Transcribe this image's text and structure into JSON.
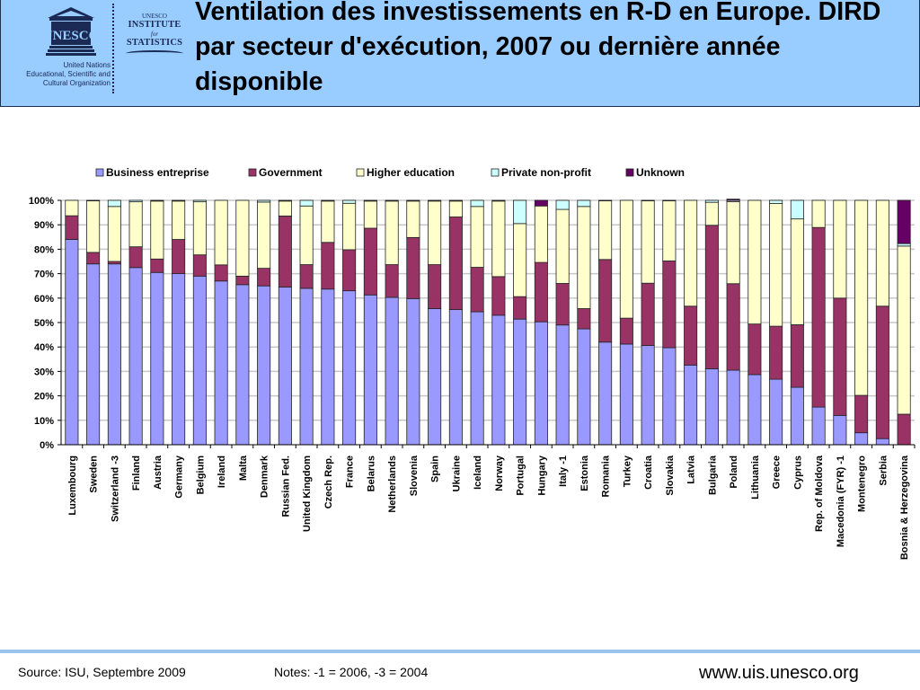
{
  "header": {
    "title": "Ventilation des investissements en R-D en Europe. DIRD par secteur d'exécution, 2007 ou dernière année disponible",
    "unesco_caption_lines": [
      "United Nations",
      "Educational, Scientific and",
      "Cultural Organization"
    ],
    "unesco_logo_text": "UNESCO",
    "uis_lines": {
      "top": "UNESCO",
      "institute": "INSTITUTE",
      "for": "for",
      "statistics": "STATISTICS"
    }
  },
  "colors": {
    "header_bg": "#99ccff",
    "business": "#9999ff",
    "government": "#993366",
    "higher_education": "#ffffcc",
    "private_non_profit": "#ccffff",
    "unknown": "#660066"
  },
  "chart_data": {
    "type": "bar",
    "stacked": true,
    "percent": true,
    "title": "",
    "xlabel": "",
    "ylabel": "",
    "ylim": [
      0,
      100
    ],
    "yticks": [
      "0%",
      "10%",
      "20%",
      "30%",
      "40%",
      "50%",
      "60%",
      "70%",
      "80%",
      "90%",
      "100%"
    ],
    "grid": true,
    "legend_position": "top",
    "categories": [
      "Luxembourg",
      "Sweden",
      "Switzerland -3",
      "Finland",
      "Austria",
      "Germany",
      "Belgium",
      "Ireland",
      "Malta",
      "Denmark",
      "Russian Fed.",
      "United Kingdom",
      "Czech Rep.",
      "France",
      "Belarus",
      "Netherlands",
      "Slovenia",
      "Spain",
      "Ukraine",
      "Iceland",
      "Norway",
      "Portugal",
      "Hungary",
      "Italy -1",
      "Estonia",
      "Romania",
      "Turkey",
      "Croatia",
      "Slovakia",
      "Latvia",
      "Bulgaria",
      "Poland",
      "Lithuania",
      "Greece",
      "Cyprus",
      "Rep. of Moldova",
      "Macedonia (FYR) -1",
      "Montenegro",
      "Serbia",
      "Bosnia & Herzegovina"
    ],
    "series": [
      {
        "name": "Business entreprise",
        "key": "business",
        "values": [
          84,
          74,
          74,
          72.5,
          70.5,
          70,
          69,
          67,
          65.5,
          65,
          64.5,
          64,
          63.7,
          63,
          61.3,
          60.3,
          59.8,
          55.7,
          55.3,
          54.4,
          53,
          51.4,
          50.3,
          49,
          47.4,
          42,
          41.2,
          40.6,
          39.7,
          32.6,
          31.1,
          30.5,
          28.7,
          26.8,
          23.5,
          15.4,
          12,
          4.9,
          2.5,
          0
        ]
      },
      {
        "name": "Government",
        "key": "government",
        "values": [
          9.7,
          4.7,
          1,
          8.5,
          5.5,
          14,
          8.7,
          6.6,
          3.5,
          7.2,
          29.1,
          9.7,
          19.1,
          16.8,
          27.3,
          13.4,
          25,
          18,
          37.9,
          18.2,
          15.8,
          9.2,
          24.3,
          17,
          8.3,
          33.8,
          10.6,
          25.5,
          35.5,
          24.1,
          58.7,
          35.4,
          20.7,
          21.7,
          25.6,
          73.5,
          48,
          15.3,
          54.2,
          12.5
        ]
      },
      {
        "name": "Higher education",
        "key": "higher_education",
        "values": [
          6.3,
          21.1,
          22.5,
          18.4,
          23.7,
          15.7,
          21.7,
          26.4,
          31,
          27.1,
          6.1,
          24,
          16.9,
          19,
          11.1,
          26,
          14.9,
          26,
          6.5,
          24.9,
          30.9,
          29.9,
          23.1,
          30.3,
          41.8,
          24,
          48.2,
          33.7,
          24.6,
          43.3,
          9.4,
          33.6,
          50.6,
          50.2,
          43.3,
          11.1,
          40,
          79.8,
          43.3,
          68.8
        ]
      },
      {
        "name": "Private non-profit",
        "key": "private_non_profit",
        "values": [
          0,
          0,
          2.5,
          0.6,
          0,
          0.3,
          0.6,
          0,
          0,
          0.7,
          0.3,
          2.3,
          0.3,
          1.2,
          0,
          0.3,
          0.3,
          0.3,
          0.3,
          2.5,
          0.3,
          9.5,
          0,
          3.7,
          2.5,
          0.2,
          0,
          0.2,
          0.2,
          0,
          0.8,
          0.5,
          0,
          1.3,
          7.6,
          0,
          0,
          0,
          0,
          1
        ]
      },
      {
        "name": "Unknown",
        "key": "unknown",
        "values": [
          0,
          0.2,
          0,
          0,
          0.3,
          0,
          0,
          0,
          0,
          0,
          0,
          0,
          0,
          0,
          0.3,
          0,
          0,
          0,
          0,
          0,
          0,
          0,
          2.3,
          0,
          0,
          0,
          0,
          0,
          0,
          0,
          0,
          0.5,
          0,
          0,
          0,
          0,
          0,
          0,
          0,
          17.7
        ]
      }
    ]
  },
  "footer": {
    "source": "Source: ISU, Septembre 2009",
    "notes": "Notes: -1 = 2006, -3 = 2004",
    "url": "www.uis.unesco.org"
  }
}
